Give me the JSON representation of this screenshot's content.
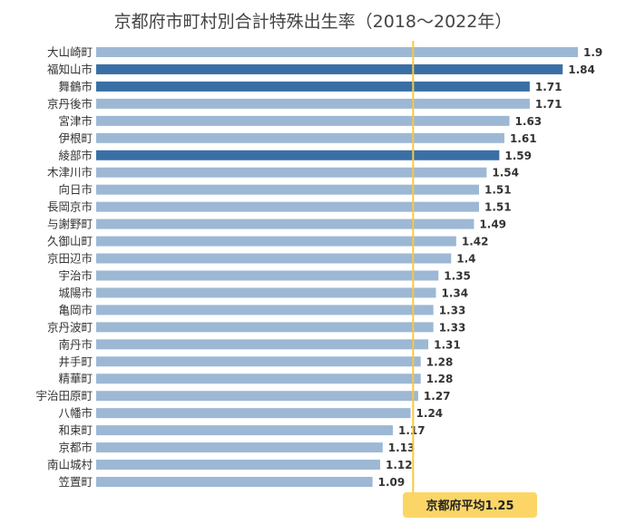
{
  "chart_data": {
    "type": "bar",
    "orientation": "horizontal",
    "title": "京都府市町村別合計特殊出生率（2018～2022年）",
    "categories": [
      "大山崎町",
      "福知山市",
      "舞鶴市",
      "京丹後市",
      "宮津市",
      "伊根町",
      "綾部市",
      "木津川市",
      "向日市",
      "長岡京市",
      "与謝野町",
      "久御山町",
      "京田辺市",
      "宇治市",
      "城陽市",
      "亀岡市",
      "京丹波町",
      "南丹市",
      "井手町",
      "精華町",
      "宇治田原町",
      "八幡市",
      "和束町",
      "京都市",
      "南山城村",
      "笠置町"
    ],
    "values": [
      1.9,
      1.84,
      1.71,
      1.71,
      1.63,
      1.61,
      1.59,
      1.54,
      1.51,
      1.51,
      1.49,
      1.42,
      1.4,
      1.35,
      1.34,
      1.33,
      1.33,
      1.31,
      1.28,
      1.28,
      1.27,
      1.24,
      1.17,
      1.13,
      1.12,
      1.09
    ],
    "value_labels": [
      "1.9",
      "1.84",
      "1.71",
      "1.71",
      "1.63",
      "1.61",
      "1.59",
      "1.54",
      "1.51",
      "1.51",
      "1.49",
      "1.42",
      "1.4",
      "1.35",
      "1.34",
      "1.33",
      "1.33",
      "1.31",
      "1.28",
      "1.28",
      "1.27",
      "1.24",
      "1.17",
      "1.13",
      "1.12",
      "1.09"
    ],
    "highlighted": [
      "福知山市",
      "舞鶴市",
      "綾部市"
    ],
    "colors": {
      "bar": "#9db8d4",
      "highlight": "#3a6fa6",
      "average_line": "#f7c842",
      "average_box": "#fbd667"
    },
    "average": {
      "value": 1.25,
      "label": "京都府平均1.25"
    },
    "xlim": [
      0,
      1.95
    ],
    "grid": false,
    "legend": "none"
  }
}
